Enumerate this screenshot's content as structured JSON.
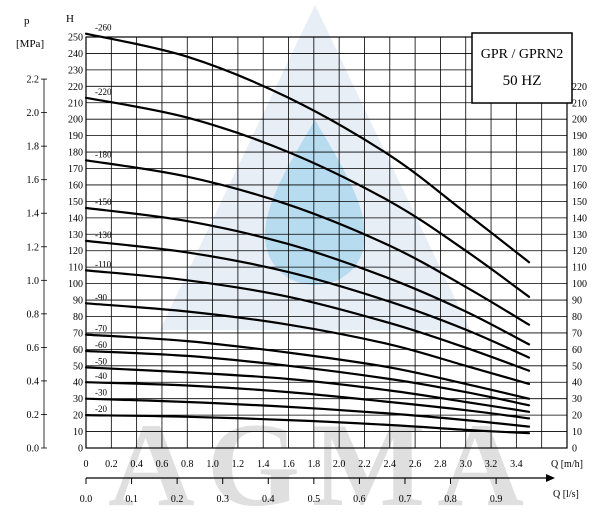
{
  "chart_data": {
    "type": "line",
    "title": "GPR / GPRN2",
    "subtitle": "50 HZ",
    "left_p_axis": {
      "label": "p",
      "unit": "[MPa]",
      "ticks": [
        "0.0",
        "0.2",
        "0.4",
        "0.6",
        "0.8",
        "1.0",
        "1.2",
        "1.4",
        "1.6",
        "1.8",
        "2.0",
        "2.2"
      ],
      "tick_values": [
        0.0,
        0.2,
        0.4,
        0.6,
        0.8,
        1.0,
        1.2,
        1.4,
        1.6,
        1.8,
        2.0,
        2.2
      ]
    },
    "h_axis": {
      "label": "H",
      "ylim": [
        0,
        250
      ],
      "ticks": [
        "0",
        "10",
        "20",
        "30",
        "40",
        "50",
        "60",
        "70",
        "80",
        "90",
        "100",
        "110",
        "120",
        "130",
        "140",
        "150",
        "160",
        "170",
        "180",
        "190",
        "200",
        "210",
        "220",
        "230",
        "240",
        "250"
      ],
      "right_ticks": [
        "0",
        "10",
        "20",
        "30",
        "40",
        "50",
        "60",
        "70",
        "80",
        "90",
        "100",
        "110",
        "120",
        "130",
        "140",
        "150",
        "160",
        "170",
        "180",
        "190",
        "200",
        "210",
        "220"
      ]
    },
    "x_axis_m3h": {
      "label": "Q [m/h]",
      "xlim": [
        0,
        3.8
      ],
      "ticks": [
        "0",
        "0.2",
        "0.4",
        "0.6",
        "0.8",
        "1.0",
        "1.2",
        "1.4",
        "1.6",
        "1.8",
        "2.0",
        "2.2",
        "2.4",
        "2.6",
        "2.8",
        "3.0",
        "3.2",
        "3.4"
      ]
    },
    "x_axis_ls": {
      "label": "Q [l/s]",
      "ticks": [
        "0.0",
        "0.1",
        "0.2",
        "0.3",
        "0.4",
        "0.5",
        "0.6",
        "0.7",
        "0.8",
        "0.9"
      ]
    },
    "series": [
      {
        "name": "-260",
        "points": [
          [
            0,
            252
          ],
          [
            0.8,
            238
          ],
          [
            1.6,
            213
          ],
          [
            2.4,
            178
          ],
          [
            3.0,
            143
          ],
          [
            3.5,
            113
          ]
        ]
      },
      {
        "name": "-220",
        "points": [
          [
            0,
            213
          ],
          [
            0.8,
            201
          ],
          [
            1.6,
            180
          ],
          [
            2.4,
            150
          ],
          [
            3.0,
            120
          ],
          [
            3.5,
            92
          ]
        ]
      },
      {
        "name": "-180",
        "points": [
          [
            0,
            175
          ],
          [
            0.8,
            165
          ],
          [
            1.6,
            148
          ],
          [
            2.4,
            123
          ],
          [
            3.0,
            98
          ],
          [
            3.5,
            75
          ]
        ]
      },
      {
        "name": "-150",
        "points": [
          [
            0,
            146
          ],
          [
            0.8,
            138
          ],
          [
            1.6,
            124
          ],
          [
            2.4,
            103
          ],
          [
            3.0,
            83
          ],
          [
            3.5,
            63
          ]
        ]
      },
      {
        "name": "-130",
        "points": [
          [
            0,
            126
          ],
          [
            0.8,
            119
          ],
          [
            1.6,
            107
          ],
          [
            2.4,
            89
          ],
          [
            3.0,
            72
          ],
          [
            3.5,
            55
          ]
        ]
      },
      {
        "name": "-110",
        "points": [
          [
            0,
            108
          ],
          [
            0.8,
            102
          ],
          [
            1.6,
            92
          ],
          [
            2.4,
            76
          ],
          [
            3.0,
            61
          ],
          [
            3.5,
            47
          ]
        ]
      },
      {
        "name": "-90",
        "points": [
          [
            0,
            88
          ],
          [
            0.8,
            83
          ],
          [
            1.6,
            75
          ],
          [
            2.4,
            63
          ],
          [
            3.0,
            50
          ],
          [
            3.5,
            39
          ]
        ]
      },
      {
        "name": "-70",
        "points": [
          [
            0,
            69
          ],
          [
            0.8,
            65
          ],
          [
            1.6,
            58
          ],
          [
            2.4,
            49
          ],
          [
            3.0,
            39
          ],
          [
            3.5,
            30
          ]
        ]
      },
      {
        "name": "-60",
        "points": [
          [
            0,
            59
          ],
          [
            0.8,
            56
          ],
          [
            1.6,
            50
          ],
          [
            2.4,
            42
          ],
          [
            3.0,
            34
          ],
          [
            3.5,
            26
          ]
        ]
      },
      {
        "name": "-50",
        "points": [
          [
            0,
            49
          ],
          [
            0.8,
            46
          ],
          [
            1.6,
            42
          ],
          [
            2.4,
            35
          ],
          [
            3.0,
            28
          ],
          [
            3.5,
            22
          ]
        ]
      },
      {
        "name": "-40",
        "points": [
          [
            0,
            40
          ],
          [
            0.8,
            38
          ],
          [
            1.6,
            34
          ],
          [
            2.4,
            28
          ],
          [
            3.0,
            23
          ],
          [
            3.5,
            18
          ]
        ]
      },
      {
        "name": "-30",
        "points": [
          [
            0,
            30
          ],
          [
            0.8,
            28
          ],
          [
            1.6,
            25
          ],
          [
            2.4,
            21
          ],
          [
            3.0,
            17
          ],
          [
            3.5,
            13
          ]
        ]
      },
      {
        "name": "-20",
        "points": [
          [
            0,
            20
          ],
          [
            0.8,
            19
          ],
          [
            1.6,
            17
          ],
          [
            2.4,
            14
          ],
          [
            3.0,
            11
          ],
          [
            3.5,
            9
          ]
        ]
      }
    ],
    "grid": true
  },
  "watermark": {
    "text": "AGMA",
    "colors": {
      "brand": "#1f5aa6",
      "drop": "#7fc6e6"
    }
  }
}
